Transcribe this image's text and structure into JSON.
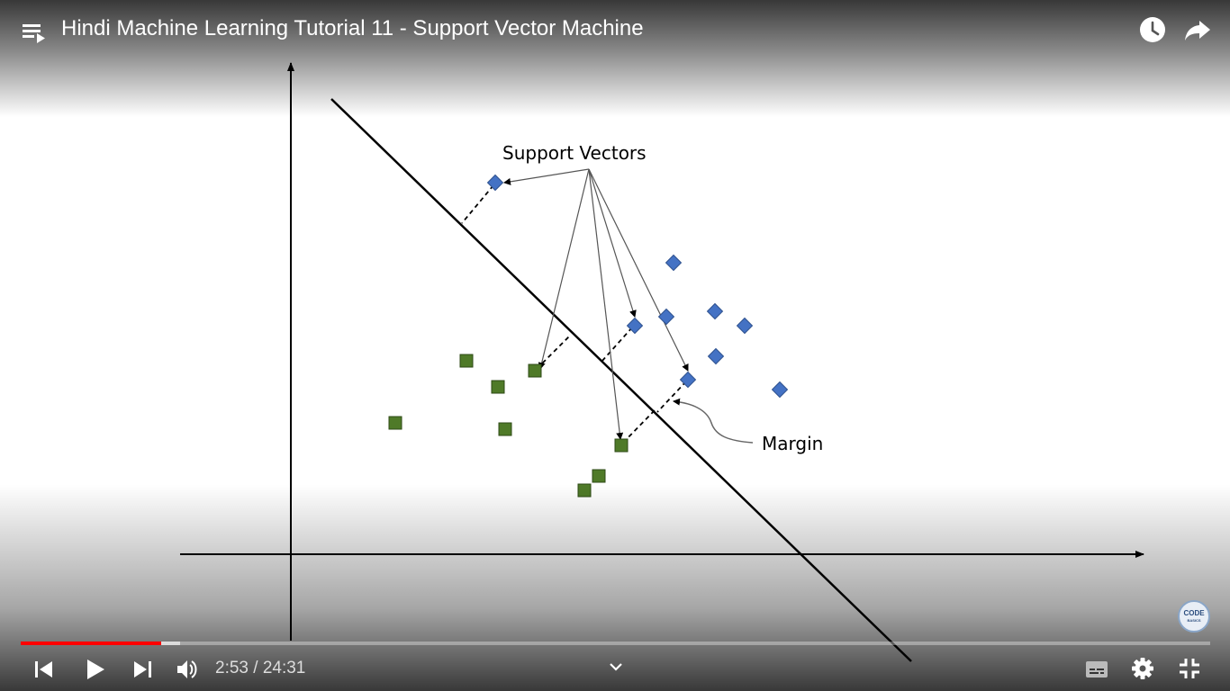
{
  "window": {
    "title": "Hindi Machine Learning Tutorial 11 - Support Vector Machine"
  },
  "player": {
    "current_time": "2:53",
    "duration": "24:31",
    "time_display": "2:53 / 24:31",
    "progress_fraction": 0.118,
    "buffered_fraction": 0.134,
    "accent_color": "#ff0000"
  },
  "diagram": {
    "support_vectors_label": "Support Vectors",
    "margin_label": "Margin",
    "class_colors": {
      "diamonds": "#4472c4",
      "squares": "#4f7a28"
    }
  },
  "channel": {
    "logo_line1": "CODE",
    "logo_line2": "BASICS"
  },
  "icons": {
    "playlist": "playlist-icon",
    "watch_later": "clock-icon",
    "share": "share-icon",
    "previous": "previous-icon",
    "play": "play-icon",
    "next": "next-icon",
    "volume": "volume-icon",
    "chapters": "chevron-down-icon",
    "subtitles": "subtitles-icon",
    "settings": "gear-icon",
    "exit_fullscreen": "exit-fullscreen-icon"
  }
}
